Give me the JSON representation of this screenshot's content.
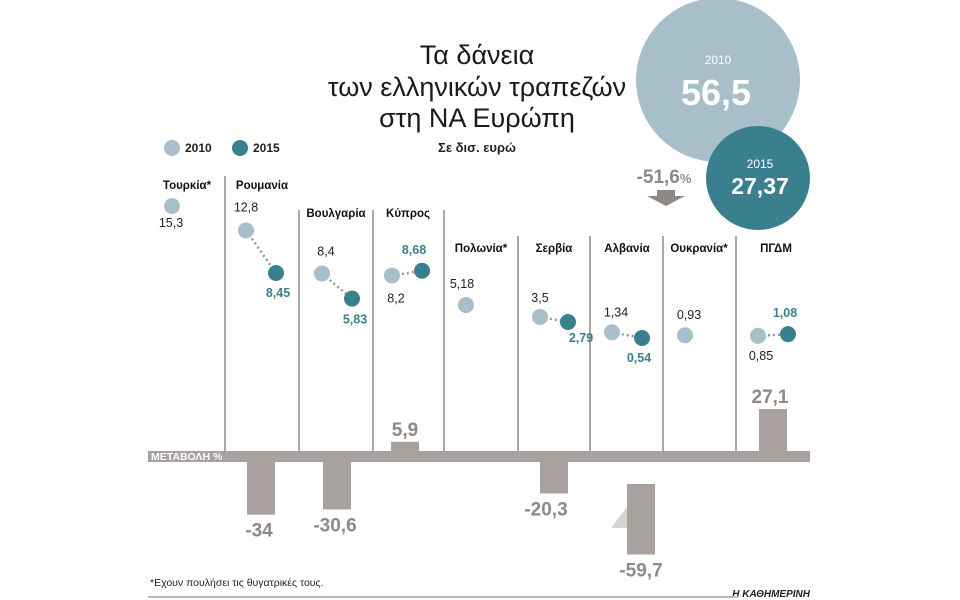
{
  "chart_data": {
    "type": "scatter",
    "title": "Τα δάνεια των ελληνικών τραπεζών στη ΝΑ Ευρώπη",
    "title_lines": [
      "Τα δάνεια",
      "των ελληνικών τραπεζών",
      "στη ΝΑ Ευρώπη"
    ],
    "subtitle": "Σε δισ. ευρώ",
    "legend": [
      {
        "name": "2010",
        "color": "#a8bec9"
      },
      {
        "name": "2015",
        "color": "#3a7f8e"
      }
    ],
    "totals": {
      "v2010_label": "2010",
      "v2010": "56,5",
      "v2015_label": "2015",
      "v2015": "27,37",
      "change": "-51,6",
      "change_unit": "%"
    },
    "change_axis_label": "ΜΕΤΑΒΟΛΗ %",
    "countries": [
      {
        "name": "Τουρκία*",
        "v2010": 15.3,
        "v2010_label": "15,3",
        "v2015": null,
        "v2015_label": "",
        "change": null,
        "change_label": ""
      },
      {
        "name": "Ρουμανία",
        "v2010": 12.8,
        "v2010_label": "12,8",
        "v2015": 8.45,
        "v2015_label": "8,45",
        "change": -34,
        "change_label": "-34"
      },
      {
        "name": "Βουλγαρία",
        "v2010": 8.4,
        "v2010_label": "8,4",
        "v2015": 5.83,
        "v2015_label": "5,83",
        "change": -30.6,
        "change_label": "-30,6"
      },
      {
        "name": "Κύπρος",
        "v2010": 8.2,
        "v2010_label": "8,2",
        "v2015": 8.68,
        "v2015_label": "8,68",
        "change": 5.9,
        "change_label": "5,9"
      },
      {
        "name": "Πολωνία*",
        "v2010": 5.18,
        "v2010_label": "5,18",
        "v2015": null,
        "v2015_label": "",
        "change": null,
        "change_label": ""
      },
      {
        "name": "Σερβία",
        "v2010": 3.5,
        "v2010_label": "3,5",
        "v2015": 2.79,
        "v2015_label": "2,79",
        "change": -20.3,
        "change_label": "-20,3"
      },
      {
        "name": "Αλβανία",
        "v2010": 1.34,
        "v2010_label": "1,34",
        "v2015": 0.54,
        "v2015_label": "0,54",
        "change": -59.7,
        "change_label": "-59,7"
      },
      {
        "name": "Ουκρανία*",
        "v2010": 0.93,
        "v2010_label": "0,93",
        "v2015": null,
        "v2015_label": "",
        "change": null,
        "change_label": ""
      },
      {
        "name": "ΠΓΔΜ",
        "v2010": 0.85,
        "v2010_label": "0,85",
        "v2015": 1.08,
        "v2015_label": "1,08",
        "change": 27.1,
        "change_label": "27,1"
      }
    ],
    "footnote": "*Εχουν πουλήσει τις θυγατρικές τους.",
    "source": "Η ΚΑΘΗΜΕΡΙΝΗ"
  }
}
